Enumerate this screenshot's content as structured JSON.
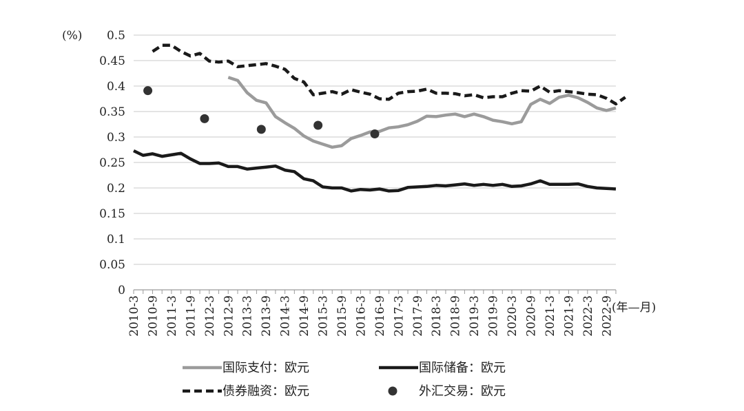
{
  "chart_data": {
    "type": "line",
    "title": "",
    "ylabel": "(%)",
    "xlabel": "(年—月)",
    "ylim": [
      0,
      0.5
    ],
    "yticks": [
      0,
      0.05,
      0.1,
      0.15,
      0.2,
      0.25,
      0.3,
      0.35,
      0.4,
      0.45,
      0.5
    ],
    "ytick_labels": [
      "0",
      "0.05",
      "0.1",
      "0.15",
      "0.2",
      "0.25",
      "0.3",
      "0.35",
      "0.4",
      "0.45",
      "0.5"
    ],
    "x_categories": [
      "2010-3",
      "2010-9",
      "2011-3",
      "2011-9",
      "2012-3",
      "2012-9",
      "2013-3",
      "2013-9",
      "2014-3",
      "2014-9",
      "2015-3",
      "2015-9",
      "2016-3",
      "2016-9",
      "2017-3",
      "2017-9",
      "2018-3",
      "2018-9",
      "2019-3",
      "2019-9",
      "2020-3",
      "2020-9",
      "2021-3",
      "2021-9",
      "2022-3",
      "2022-9"
    ],
    "x_note": "monthly points spaced by quarter; x index 0 = 2010-3, step = 1 quarter",
    "grid": true,
    "legend_position": "bottom",
    "series": [
      {
        "name": "国际支付：欧元",
        "style": "solid",
        "color": "#9b9b9b",
        "start_index": 10,
        "values": [
          0.417,
          0.411,
          0.387,
          0.372,
          0.367,
          0.34,
          0.328,
          0.317,
          0.302,
          0.292,
          0.286,
          0.28,
          0.283,
          0.297,
          0.303,
          0.31,
          0.311,
          0.318,
          0.32,
          0.324,
          0.331,
          0.341,
          0.34,
          0.343,
          0.345,
          0.34,
          0.345,
          0.34,
          0.333,
          0.33,
          0.326,
          0.33,
          0.364,
          0.374,
          0.366,
          0.378,
          0.382,
          0.377,
          0.368,
          0.357,
          0.352,
          0.357
        ]
      },
      {
        "name": "国际储备：欧元",
        "style": "solid",
        "color": "#1a1a1a",
        "start_index": 0,
        "values": [
          0.273,
          0.264,
          0.267,
          0.262,
          0.265,
          0.268,
          0.257,
          0.248,
          0.248,
          0.249,
          0.242,
          0.242,
          0.237,
          0.239,
          0.241,
          0.243,
          0.235,
          0.232,
          0.218,
          0.214,
          0.202,
          0.2,
          0.2,
          0.194,
          0.197,
          0.196,
          0.198,
          0.194,
          0.195,
          0.201,
          0.202,
          0.203,
          0.205,
          0.204,
          0.206,
          0.208,
          0.205,
          0.207,
          0.205,
          0.207,
          0.203,
          0.204,
          0.208,
          0.214,
          0.207,
          0.207,
          0.207,
          0.208,
          0.203,
          0.2,
          0.199,
          0.198
        ]
      },
      {
        "name": "债券融资：欧元",
        "style": "dashed",
        "color": "#1a1a1a",
        "start_index": 2,
        "values": [
          0.468,
          0.48,
          0.48,
          0.468,
          0.459,
          0.464,
          0.449,
          0.447,
          0.449,
          0.438,
          0.44,
          0.442,
          0.444,
          0.439,
          0.433,
          0.415,
          0.408,
          0.383,
          0.386,
          0.389,
          0.384,
          0.393,
          0.388,
          0.384,
          0.375,
          0.374,
          0.386,
          0.389,
          0.39,
          0.394,
          0.386,
          0.386,
          0.385,
          0.381,
          0.383,
          0.377,
          0.379,
          0.379,
          0.386,
          0.391,
          0.39,
          0.4,
          0.388,
          0.391,
          0.389,
          0.387,
          0.384,
          0.383,
          0.376,
          0.365,
          0.378
        ]
      },
      {
        "name": "外汇交易：欧元",
        "style": "marker",
        "color": "#333333",
        "points": [
          {
            "x": 1.5,
            "y": 0.391
          },
          {
            "x": 7.5,
            "y": 0.336
          },
          {
            "x": 13.5,
            "y": 0.315
          },
          {
            "x": 19.5,
            "y": 0.323
          },
          {
            "x": 25.5,
            "y": 0.306
          }
        ]
      }
    ]
  }
}
